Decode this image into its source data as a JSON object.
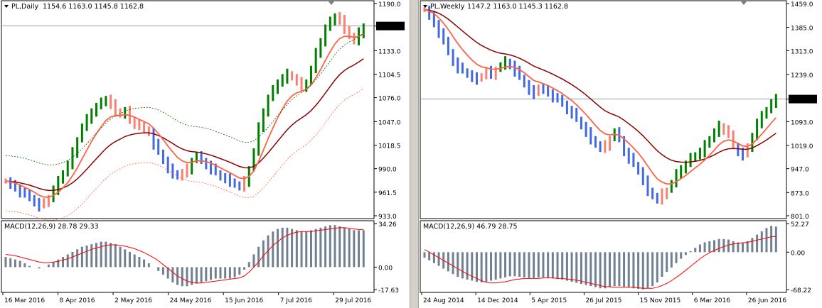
{
  "charts": [
    {
      "id": "left",
      "symbol_label": "PL,Daily",
      "ohlc_label": "1154.6 1163.0 1145.8 1162.8",
      "price_ticks": [
        "1190.0",
        "1162.8",
        "1133.0",
        "1104.5",
        "1076.0",
        "1047.0",
        "1018.5",
        "990.0",
        "961.5",
        "933.0"
      ],
      "current_price": "1162.8",
      "macd_label": "MACD(12,26,9) 28.78 29.33",
      "macd_ticks": [
        "34.26",
        "0.00",
        "-17.63"
      ],
      "date_ticks": [
        "16 Mar 2016",
        "8 Apr 2016",
        "2 May 2016",
        "24 May 2016",
        "15 Jun 2016",
        "7 Jul 2016",
        "29 Jul 2016"
      ]
    },
    {
      "id": "right",
      "symbol_label": "PL,Weekly",
      "ohlc_label": "1147.2 1163.0 1145.3 1162.8",
      "price_ticks": [
        "1459.0",
        "1385.0",
        "1313.0",
        "1239.0",
        "1162.8",
        "1093.0",
        "1019.0",
        "947.0",
        "873.0",
        "801.0"
      ],
      "current_price": "1162.8",
      "macd_label": "MACD(12,26,9) 46.79 28.75",
      "macd_ticks": [
        "52.27",
        "0.00",
        "-68.22"
      ],
      "date_ticks": [
        "24 Aug 2014",
        "14 Dec 2014",
        "5 Apr 2015",
        "26 Jul 2015",
        "15 Nov 2015",
        "6 Mar 2016",
        "26 Jun 2016"
      ]
    }
  ],
  "colors": {
    "bull_bar": "#008000",
    "bear_light_bar": "#fa8072",
    "bear_bar": "#4169e1",
    "fast_ma": "#ff6347",
    "slow_ma": "#8b0000",
    "envelope": "#006400",
    "envelope_low": "#ff6347",
    "macd_hist": "#708090",
    "macd_signal": "#ff0000",
    "price_line": "#708090"
  },
  "chart_data": [
    {
      "type": "bar",
      "subtype": "ohlc",
      "title": "PL,Daily",
      "ylim": [
        933,
        1190
      ],
      "macd_ylim": [
        -17.63,
        34.26
      ],
      "x_categories": [
        "16 Mar 2016",
        "8 Apr 2016",
        "2 May 2016",
        "24 May 2016",
        "15 Jun 2016",
        "7 Jul 2016",
        "29 Jul 2016"
      ],
      "close_series": [
        975,
        970,
        968,
        962,
        958,
        955,
        950,
        945,
        948,
        955,
        965,
        975,
        985,
        995,
        1010,
        1025,
        1040,
        1050,
        1060,
        1065,
        1070,
        1075,
        1068,
        1060,
        1055,
        1060,
        1050,
        1045,
        1040,
        1038,
        1035,
        1020,
        1010,
        1000,
        990,
        985,
        980,
        985,
        990,
        1000,
        1005,
        1000,
        995,
        990,
        985,
        980,
        978,
        975,
        970,
        968,
        975,
        990,
        1010,
        1040,
        1060,
        1075,
        1085,
        1095,
        1100,
        1105,
        1100,
        1095,
        1090,
        1095,
        1110,
        1130,
        1145,
        1160,
        1168,
        1175,
        1170,
        1160,
        1150,
        1145,
        1155,
        1162.8
      ],
      "macd_series": [
        8,
        7,
        6,
        5,
        3,
        1,
        0,
        -1,
        0,
        2,
        4,
        6,
        8,
        10,
        12,
        14,
        16,
        17,
        18,
        19,
        20,
        20,
        19,
        18,
        16,
        14,
        12,
        10,
        8,
        6,
        3,
        0,
        -3,
        -6,
        -9,
        -12,
        -14,
        -15,
        -15,
        -14,
        -13,
        -12,
        -11,
        -10,
        -9,
        -9,
        -9,
        -9,
        -8,
        -6,
        -2,
        4,
        10,
        16,
        21,
        25,
        28,
        30,
        31,
        31,
        30,
        29,
        28,
        28,
        29,
        30,
        31,
        32,
        33,
        33,
        32,
        31,
        30,
        29,
        29,
        29
      ],
      "signal_series": [
        10,
        9.5,
        9,
        8,
        7,
        6,
        5,
        4,
        3.5,
        3.5,
        4,
        4.5,
        5.5,
        6.5,
        8,
        9.5,
        11,
        12.5,
        14,
        15,
        16,
        17,
        17.5,
        17.5,
        17,
        16.5,
        15.5,
        14.5,
        13,
        11.5,
        9.5,
        7.5,
        5,
        2,
        -1,
        -4,
        -7,
        -9,
        -11,
        -12,
        -12.5,
        -12.5,
        -12,
        -11.5,
        -11,
        -10.5,
        -10,
        -9.5,
        -9,
        -8.5,
        -7,
        -4,
        0,
        4,
        9,
        13,
        17,
        20,
        23,
        25,
        26.5,
        27.5,
        28,
        28,
        28,
        28.5,
        29,
        29.5,
        30,
        30.5,
        31,
        31,
        30.5,
        30,
        29.6,
        29.33
      ]
    },
    {
      "type": "bar",
      "subtype": "ohlc",
      "title": "PL,Weekly",
      "ylim": [
        801,
        1459
      ],
      "macd_ylim": [
        -68.22,
        52.27
      ],
      "x_categories": [
        "24 Aug 2014",
        "14 Dec 2014",
        "5 Apr 2015",
        "26 Jul 2015",
        "15 Nov 2015",
        "6 Mar 2016",
        "26 Jun 2016"
      ],
      "close_series": [
        1440,
        1420,
        1400,
        1370,
        1340,
        1310,
        1280,
        1260,
        1250,
        1240,
        1230,
        1225,
        1235,
        1250,
        1240,
        1255,
        1265,
        1280,
        1270,
        1250,
        1230,
        1210,
        1190,
        1180,
        1200,
        1190,
        1185,
        1170,
        1160,
        1150,
        1130,
        1120,
        1100,
        1080,
        1060,
        1040,
        1020,
        1010,
        1020,
        1040,
        1060,
        1040,
        1000,
        980,
        960,
        940,
        910,
        880,
        860,
        850,
        870,
        880,
        900,
        930,
        950,
        960,
        980,
        990,
        1000,
        1020,
        1040,
        1060,
        1080,
        1070,
        1050,
        1020,
        1000,
        990,
        1010,
        1050,
        1090,
        1110,
        1130,
        1150,
        1162.8
      ],
      "macd_series": [
        -10,
        -15,
        -20,
        -25,
        -30,
        -35,
        -40,
        -45,
        -48,
        -50,
        -52,
        -54,
        -55,
        -54,
        -52,
        -50,
        -48,
        -46,
        -44,
        -44,
        -45,
        -46,
        -47,
        -47,
        -46,
        -46,
        -47,
        -48,
        -49,
        -50,
        -52,
        -54,
        -56,
        -58,
        -60,
        -62,
        -64,
        -66,
        -66,
        -64,
        -62,
        -62,
        -63,
        -64,
        -66,
        -67,
        -68,
        -66,
        -62,
        -55,
        -45,
        -36,
        -28,
        -20,
        -12,
        -5,
        2,
        8,
        14,
        18,
        20,
        22,
        24,
        24,
        23,
        20,
        18,
        18,
        20,
        26,
        32,
        38,
        44,
        48,
        46.79
      ],
      "signal_series": [
        5,
        0,
        -5,
        -10,
        -15,
        -20,
        -25,
        -30,
        -35,
        -40,
        -44,
        -48,
        -52,
        -55,
        -56,
        -56,
        -55,
        -54,
        -52,
        -50,
        -49,
        -48,
        -48,
        -48,
        -48,
        -47,
        -47,
        -47,
        -48,
        -48,
        -49,
        -50,
        -51,
        -53,
        -55,
        -57,
        -59,
        -61,
        -63,
        -63,
        -64,
        -64,
        -64,
        -64,
        -64,
        -65,
        -66,
        -66,
        -66,
        -64,
        -61,
        -57,
        -52,
        -46,
        -40,
        -33,
        -26,
        -19,
        -12,
        -6,
        -1,
        3,
        7,
        10,
        13,
        15,
        16,
        17,
        18,
        20,
        22,
        24,
        26,
        28,
        28.75
      ]
    }
  ]
}
